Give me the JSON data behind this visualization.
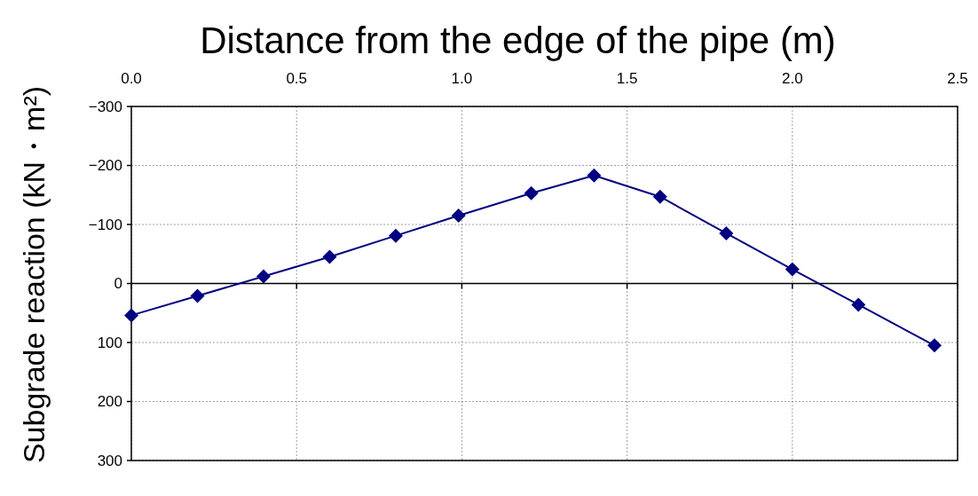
{
  "chart_data": {
    "type": "line",
    "xlabel": "Distance from the edge of the pipe (m)",
    "ylabel": "Subgrade reaction  (kN・m²)",
    "x": [
      0.0,
      0.2,
      0.4,
      0.6,
      0.8,
      0.99,
      1.21,
      1.4,
      1.6,
      1.8,
      2.0,
      2.2,
      2.43
    ],
    "series": [
      {
        "color": "#000080",
        "values": [
          54,
          21,
          -12,
          -45,
          -81,
          -115,
          -153,
          -183,
          -147,
          -85,
          -24,
          36,
          105
        ]
      }
    ],
    "xlim": [
      0,
      2.5
    ],
    "xticks": [
      {
        "value": 0,
        "label": "0.0"
      },
      {
        "value": 0.5,
        "label": "0.5"
      },
      {
        "value": 1,
        "label": "1.0"
      },
      {
        "value": 1.5,
        "label": "1.5"
      },
      {
        "value": 2,
        "label": "2.0"
      },
      {
        "value": 2.5,
        "label": "2.5"
      }
    ],
    "ylim": [
      300,
      -300
    ],
    "yticks": [
      -300,
      -200,
      -100,
      0,
      100,
      200,
      300
    ],
    "grid": true,
    "marker": "diamond",
    "line_style": "solid"
  }
}
